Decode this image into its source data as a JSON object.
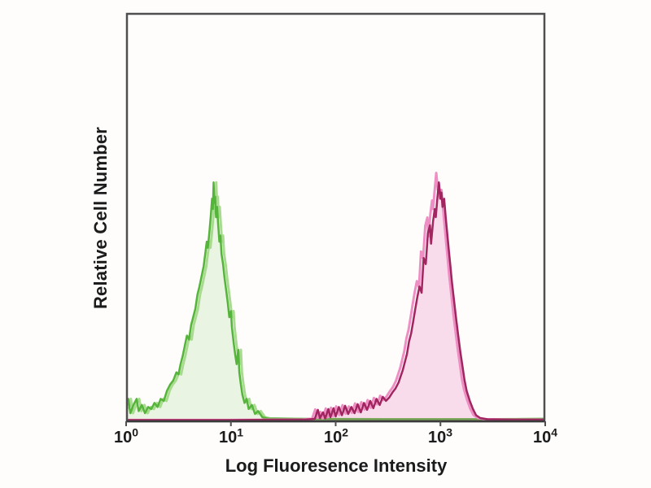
{
  "chart_data": {
    "type": "line",
    "subtype": "flow-cytometry-histogram-overlay",
    "title": "",
    "xlabel": "Log Fluoresence Intensity",
    "ylabel": "Relative Cell Number",
    "x_scale": "log10",
    "x_range": [
      1,
      10000
    ],
    "x_ticks": [
      {
        "base": "10",
        "exp": "0"
      },
      {
        "base": "10",
        "exp": "1"
      },
      {
        "base": "10",
        "exp": "2"
      },
      {
        "base": "10",
        "exp": "3"
      },
      {
        "base": "10",
        "exp": "4"
      }
    ],
    "y_ticks": "none (relative scale, unlabeled)",
    "grid": false,
    "legend": "none",
    "plot_border_color": "#4f4f4f",
    "axis_line_color": "#3a3a3a",
    "text_color": "#1b1b1b",
    "background_color": "#fefdfc",
    "series": [
      {
        "name": "negative-control-green",
        "color": "#55b43a",
        "shadow_color": "#a8db8f",
        "fill_color": "#7fcb60",
        "fill_opacity": 0.16,
        "shadow_offset_log": 0.025,
        "shadow_scale": 1.0,
        "peak": {
          "log_x": 0.83,
          "x_value": 6.8,
          "height_frac": 0.585
        },
        "points_log_frac": [
          [
            0.0,
            0.03
          ],
          [
            0.02,
            0.055
          ],
          [
            0.04,
            0.02
          ],
          [
            0.07,
            0.04
          ],
          [
            0.1,
            0.055
          ],
          [
            0.12,
            0.025
          ],
          [
            0.15,
            0.04
          ],
          [
            0.18,
            0.02
          ],
          [
            0.21,
            0.035
          ],
          [
            0.24,
            0.03
          ],
          [
            0.27,
            0.045
          ],
          [
            0.3,
            0.035
          ],
          [
            0.33,
            0.055
          ],
          [
            0.36,
            0.05
          ],
          [
            0.39,
            0.075
          ],
          [
            0.42,
            0.09
          ],
          [
            0.45,
            0.1
          ],
          [
            0.48,
            0.12
          ],
          [
            0.5,
            0.115
          ],
          [
            0.52,
            0.14
          ],
          [
            0.54,
            0.16
          ],
          [
            0.56,
            0.185
          ],
          [
            0.58,
            0.21
          ],
          [
            0.6,
            0.2
          ],
          [
            0.62,
            0.235
          ],
          [
            0.64,
            0.255
          ],
          [
            0.66,
            0.275
          ],
          [
            0.68,
            0.31
          ],
          [
            0.7,
            0.33
          ],
          [
            0.72,
            0.355
          ],
          [
            0.74,
            0.38
          ],
          [
            0.755,
            0.41
          ],
          [
            0.77,
            0.44
          ],
          [
            0.78,
            0.425
          ],
          [
            0.795,
            0.465
          ],
          [
            0.81,
            0.51
          ],
          [
            0.82,
            0.545
          ],
          [
            0.828,
            0.52
          ],
          [
            0.835,
            0.585
          ],
          [
            0.842,
            0.535
          ],
          [
            0.85,
            0.55
          ],
          [
            0.858,
            0.5
          ],
          [
            0.868,
            0.525
          ],
          [
            0.878,
            0.485
          ],
          [
            0.89,
            0.44
          ],
          [
            0.9,
            0.455
          ],
          [
            0.91,
            0.41
          ],
          [
            0.925,
            0.385
          ],
          [
            0.94,
            0.35
          ],
          [
            0.955,
            0.32
          ],
          [
            0.97,
            0.29
          ],
          [
            0.985,
            0.255
          ],
          [
            1.0,
            0.27
          ],
          [
            1.01,
            0.23
          ],
          [
            1.025,
            0.195
          ],
          [
            1.04,
            0.165
          ],
          [
            1.055,
            0.14
          ],
          [
            1.07,
            0.175
          ],
          [
            1.08,
            0.12
          ],
          [
            1.095,
            0.09
          ],
          [
            1.11,
            0.065
          ],
          [
            1.13,
            0.045
          ],
          [
            1.15,
            0.055
          ],
          [
            1.17,
            0.03
          ],
          [
            1.2,
            0.04
          ],
          [
            1.23,
            0.018
          ],
          [
            1.26,
            0.025
          ],
          [
            1.3,
            0.01
          ],
          [
            1.35,
            0.007
          ],
          [
            1.6,
            0.006
          ],
          [
            2.5,
            0.005
          ],
          [
            3.5,
            0.005
          ],
          [
            4.0,
            0.006
          ]
        ]
      },
      {
        "name": "stained-magenta",
        "color": "#a1255f",
        "shadow_color": "#ef8ec4",
        "fill_color": "#e86ab2",
        "fill_opacity": 0.22,
        "shadow_offset_log": -0.025,
        "shadow_scale": 1.04,
        "peak": {
          "log_x": 2.985,
          "x_value": 970,
          "height_frac": 0.585
        },
        "points_log_frac": [
          [
            0.0,
            0.003
          ],
          [
            1.0,
            0.003
          ],
          [
            1.5,
            0.004
          ],
          [
            1.7,
            0.004
          ],
          [
            1.8,
            0.006
          ],
          [
            1.83,
            0.028
          ],
          [
            1.85,
            0.008
          ],
          [
            1.88,
            0.022
          ],
          [
            1.9,
            0.007
          ],
          [
            1.93,
            0.03
          ],
          [
            1.95,
            0.01
          ],
          [
            1.98,
            0.032
          ],
          [
            2.0,
            0.012
          ],
          [
            2.03,
            0.035
          ],
          [
            2.06,
            0.015
          ],
          [
            2.09,
            0.038
          ],
          [
            2.12,
            0.018
          ],
          [
            2.15,
            0.035
          ],
          [
            2.18,
            0.02
          ],
          [
            2.21,
            0.042
          ],
          [
            2.24,
            0.022
          ],
          [
            2.27,
            0.045
          ],
          [
            2.3,
            0.028
          ],
          [
            2.33,
            0.05
          ],
          [
            2.36,
            0.032
          ],
          [
            2.39,
            0.055
          ],
          [
            2.42,
            0.04
          ],
          [
            2.45,
            0.06
          ],
          [
            2.48,
            0.05
          ],
          [
            2.51,
            0.058
          ],
          [
            2.54,
            0.07
          ],
          [
            2.57,
            0.08
          ],
          [
            2.6,
            0.095
          ],
          [
            2.62,
            0.11
          ],
          [
            2.64,
            0.125
          ],
          [
            2.66,
            0.145
          ],
          [
            2.68,
            0.165
          ],
          [
            2.7,
            0.195
          ],
          [
            2.72,
            0.215
          ],
          [
            2.74,
            0.245
          ],
          [
            2.76,
            0.275
          ],
          [
            2.78,
            0.305
          ],
          [
            2.8,
            0.33
          ],
          [
            2.82,
            0.315
          ],
          [
            2.84,
            0.4
          ],
          [
            2.86,
            0.385
          ],
          [
            2.88,
            0.46
          ],
          [
            2.9,
            0.48
          ],
          [
            2.91,
            0.435
          ],
          [
            2.93,
            0.49
          ],
          [
            2.945,
            0.52
          ],
          [
            2.955,
            0.5
          ],
          [
            2.97,
            0.545
          ],
          [
            2.985,
            0.585
          ],
          [
            3.0,
            0.545
          ],
          [
            3.01,
            0.56
          ],
          [
            3.02,
            0.525
          ],
          [
            3.035,
            0.545
          ],
          [
            3.05,
            0.5
          ],
          [
            3.065,
            0.46
          ],
          [
            3.08,
            0.42
          ],
          [
            3.095,
            0.38
          ],
          [
            3.11,
            0.34
          ],
          [
            3.13,
            0.295
          ],
          [
            3.15,
            0.25
          ],
          [
            3.17,
            0.21
          ],
          [
            3.19,
            0.17
          ],
          [
            3.21,
            0.135
          ],
          [
            3.23,
            0.1
          ],
          [
            3.25,
            0.075
          ],
          [
            3.28,
            0.05
          ],
          [
            3.31,
            0.03
          ],
          [
            3.34,
            0.015
          ],
          [
            3.38,
            0.008
          ],
          [
            3.45,
            0.005
          ],
          [
            3.7,
            0.004
          ],
          [
            4.0,
            0.004
          ]
        ]
      }
    ]
  }
}
